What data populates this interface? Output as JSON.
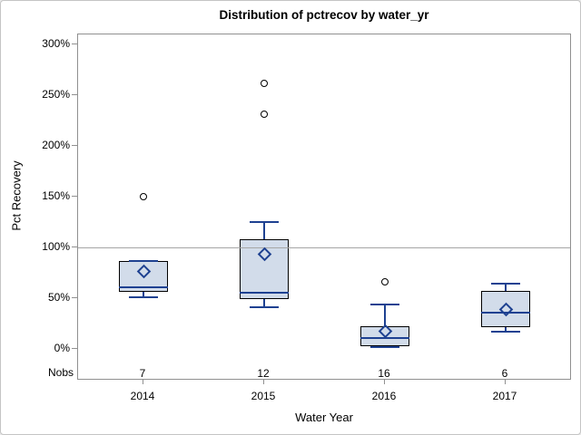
{
  "colors": {
    "box_fill": "#d2dcea",
    "box_edge": "#000000",
    "blue_line": "#1e4191",
    "reference_line": "#a6a6a6",
    "axis": "#909090",
    "text": "#000000",
    "outlier_fill": "#ffffff"
  },
  "chart_data": {
    "type": "boxplot",
    "title": "Distribution of pctrecov by water_yr",
    "xlabel": "Water Year",
    "ylabel": "Pct Recovery",
    "nobs_label": "Nobs",
    "ylim": [
      0,
      300
    ],
    "grid": false,
    "reference_line": 100,
    "yticks": [
      {
        "value": 0,
        "label": "0%"
      },
      {
        "value": 50,
        "label": "50%"
      },
      {
        "value": 100,
        "label": "100%"
      },
      {
        "value": 150,
        "label": "150%"
      },
      {
        "value": 200,
        "label": "200%"
      },
      {
        "value": 250,
        "label": "250%"
      },
      {
        "value": 300,
        "label": "300%"
      }
    ],
    "categories": [
      "2014",
      "2015",
      "2016",
      "2017"
    ],
    "nobs": [
      7,
      12,
      16,
      6
    ],
    "series": [
      {
        "category": "2014",
        "n": 7,
        "whisker_low": 51,
        "q1": 56,
        "median": 61,
        "q3": 87,
        "whisker_high": 87,
        "mean": 76,
        "outliers": [
          150
        ]
      },
      {
        "category": "2015",
        "n": 12,
        "whisker_low": 41,
        "q1": 49,
        "median": 55,
        "q3": 108,
        "whisker_high": 125,
        "mean": 93,
        "outliers": [
          231,
          262
        ]
      },
      {
        "category": "2016",
        "n": 16,
        "whisker_low": 2,
        "q1": 3,
        "median": 11,
        "q3": 22,
        "whisker_high": 44,
        "mean": 17,
        "outliers": [
          66
        ]
      },
      {
        "category": "2017",
        "n": 6,
        "whisker_low": 17,
        "q1": 21,
        "median": 36,
        "q3": 57,
        "whisker_high": 64,
        "mean": 39,
        "outliers": []
      }
    ]
  }
}
